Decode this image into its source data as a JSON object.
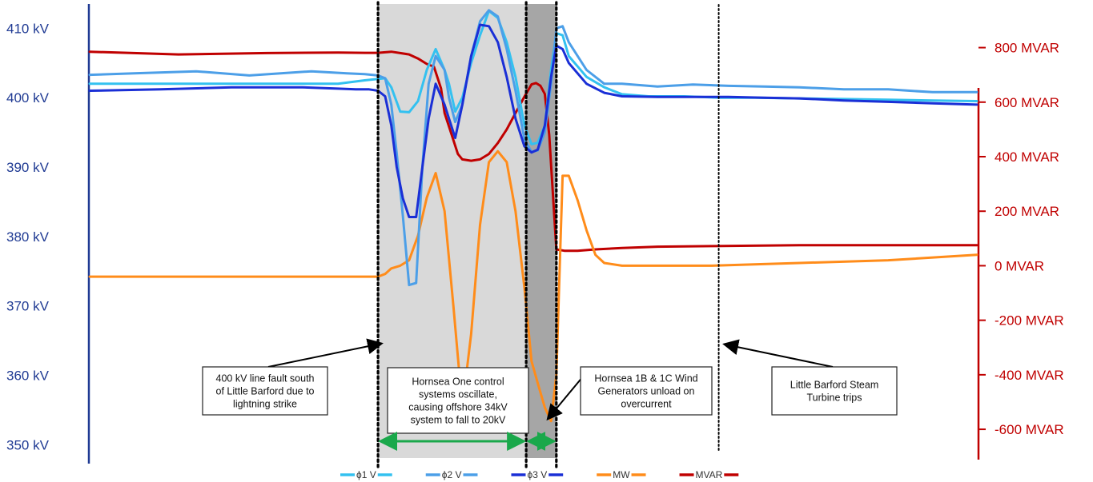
{
  "chart_data": {
    "type": "line",
    "title": "",
    "xlabel": "",
    "ylabel": "",
    "y_left": {
      "ticks": [
        350,
        360,
        370,
        380,
        390,
        400,
        410
      ],
      "tick_labels": [
        "350 kV",
        "360 kV",
        "370 kV",
        "380 kV",
        "390 kV",
        "400 kV",
        "410 kV"
      ],
      "range": [
        347.5,
        413.5
      ],
      "color": "#1f3a93"
    },
    "y_right": {
      "ticks": [
        -600,
        -400,
        -200,
        0,
        200,
        400,
        600,
        800
      ],
      "tick_labels": [
        "-600 MVAR",
        "-400 MVAR",
        "-200 MVAR",
        "0 MVAR",
        "200 MVAR",
        "400 MVAR",
        "600 MVAR",
        "800 MVAR"
      ],
      "range": [
        -720,
        960
      ],
      "color": "#c00000"
    },
    "x_range": [
      0,
      100
    ],
    "shaded_regions": [
      {
        "x0": 32.5,
        "x1": 49.2,
        "color": "#d9d9d9"
      },
      {
        "x0": 49.2,
        "x1": 52.6,
        "color": "#a6a6a6"
      }
    ],
    "event_lines": [
      32.5,
      49.2,
      52.6,
      70.9
    ],
    "series": [
      {
        "name": "ϕ1 V",
        "axis": "left",
        "color": "#33c1f0",
        "x": [
          0,
          10,
          20,
          28,
          31,
          32.5,
          33.3,
          34,
          35,
          36,
          37,
          38,
          39,
          40,
          40.5,
          41.2,
          42,
          43,
          44,
          45,
          46,
          47,
          48,
          49,
          49.8,
          50.5,
          51.3,
          52,
          52.6,
          53.3,
          54,
          56,
          58,
          60,
          63,
          67,
          71,
          75,
          80,
          85,
          90,
          95,
          100
        ],
        "y": [
          402,
          402,
          402,
          402,
          402.5,
          402.7,
          402.8,
          401.5,
          398,
          397.9,
          399.5,
          404,
          407,
          404,
          402,
          398,
          400,
          405,
          409,
          412.5,
          411.5,
          408,
          403,
          396,
          393.3,
          393.5,
          396,
          404,
          409.3,
          409,
          406,
          403,
          401.5,
          400.5,
          400.2,
          400.2,
          400,
          400,
          399.9,
          399.8,
          399.7,
          399.6,
          399.5
        ]
      },
      {
        "name": "ϕ2 V",
        "axis": "left",
        "color": "#4c9fe8",
        "x": [
          0,
          5,
          12,
          18,
          25,
          29,
          31,
          32.5,
          33.3,
          34,
          34.6,
          35.3,
          36,
          36.8,
          37.5,
          38.2,
          39,
          40,
          40.5,
          41.2,
          42,
          43,
          44,
          45,
          46,
          47,
          48,
          49,
          49.8,
          50.5,
          51.3,
          52,
          52.6,
          53.3,
          54,
          56,
          58,
          60,
          64,
          68,
          72,
          76,
          80,
          85,
          90,
          95,
          100
        ],
        "y": [
          403.3,
          403.5,
          403.8,
          403.2,
          403.8,
          403.5,
          403.4,
          403.2,
          402.8,
          399,
          392,
          383,
          373,
          373.3,
          390,
          402,
          406,
          404,
          400,
          396.5,
          399,
          406,
          411,
          412.6,
          411.7,
          407,
          401,
          394,
          392.2,
          392.4,
          395,
          402,
          410,
          410.3,
          408,
          404,
          402,
          402,
          401.6,
          401.9,
          401.7,
          401.6,
          401.5,
          401.2,
          401.2,
          400.8,
          400.8
        ]
      },
      {
        "name": "ϕ3 V",
        "axis": "left",
        "color": "#1a2fd6",
        "x": [
          0,
          8,
          16,
          24,
          28,
          30,
          31.5,
          32.5,
          33.3,
          34,
          34.6,
          35.3,
          36,
          36.8,
          37.5,
          38.2,
          39,
          40,
          40.5,
          41.2,
          42,
          43,
          44,
          45,
          46,
          47,
          48,
          49,
          49.8,
          50.5,
          51.3,
          52,
          52.6,
          53.3,
          54,
          56,
          58,
          60,
          64,
          68,
          72,
          76,
          80,
          85,
          90,
          95,
          100
        ],
        "y": [
          401,
          401.2,
          401.5,
          401.5,
          401.3,
          401.2,
          401.2,
          401,
          400.2,
          396,
          390,
          385.5,
          382.8,
          382.8,
          390,
          397,
          402,
          399,
          397,
          394.2,
          399,
          406,
          410.5,
          410.3,
          408,
          403,
          397,
          393,
          392.1,
          392.5,
          396,
          403,
          407.5,
          407,
          405,
          402,
          400.7,
          400.2,
          400.1,
          400.1,
          400.1,
          400,
          399.9,
          399.6,
          399.4,
          399.2,
          399
        ]
      },
      {
        "name": "MW",
        "axis": "right",
        "color": "#ff8c1a",
        "x": [
          0,
          10,
          20,
          28,
          31,
          32.5,
          33.3,
          34,
          35,
          36,
          37,
          38,
          39,
          40,
          41,
          42,
          43,
          44,
          45,
          46,
          47,
          48,
          49,
          49.8,
          50.5,
          51.3,
          52,
          52.6,
          53.3,
          54,
          55,
          56,
          57,
          58,
          60,
          64,
          70,
          80,
          90,
          100
        ],
        "y": [
          -40,
          -40,
          -40,
          -40,
          -40,
          -40,
          -30,
          -10,
          0,
          20,
          110,
          250,
          340,
          200,
          -150,
          -520,
          -250,
          150,
          380,
          420,
          380,
          200,
          -80,
          -350,
          -430,
          -520,
          -570,
          -400,
          330,
          330,
          240,
          130,
          40,
          10,
          0,
          0,
          0,
          10,
          20,
          40
        ]
      },
      {
        "name": "MVAR",
        "axis": "right",
        "color": "#c00000",
        "x": [
          0,
          10,
          20,
          28,
          31,
          32.5,
          33.3,
          34,
          35,
          36,
          37,
          38,
          38.8,
          39.6,
          40,
          40.8,
          41.5,
          42,
          43,
          44,
          45,
          46,
          47,
          48,
          49,
          49.8,
          50.3,
          50.8,
          51.3,
          51.8,
          52.6,
          53.5,
          55,
          57,
          60,
          64,
          70,
          80,
          90,
          100
        ],
        "y": [
          785,
          775,
          780,
          782,
          781,
          781,
          783,
          785,
          780,
          775,
          760,
          740,
          730,
          650,
          560,
          480,
          410,
          390,
          385,
          390,
          410,
          450,
          500,
          560,
          620,
          665,
          670,
          660,
          630,
          480,
          60,
          55,
          55,
          60,
          65,
          70,
          72,
          75,
          75,
          75
        ]
      }
    ],
    "annotations": [
      {
        "id": "line-fault",
        "lines": [
          "400 kV line fault south",
          "of Little Barford due to",
          "lightning strike"
        ]
      },
      {
        "id": "hornsea-one",
        "lines": [
          "Hornsea One control",
          "systems oscillate,",
          "causing offshore 34kV",
          "system to fall to 20kV"
        ]
      },
      {
        "id": "hornsea-1b-1c",
        "lines": [
          "Hornsea 1B & 1C Wind",
          "Generators unload on",
          "overcurrent"
        ]
      },
      {
        "id": "little-barford-trip",
        "lines": [
          "Little Barford Steam",
          "Turbine trips"
        ]
      }
    ],
    "legend": {
      "placement": "bottom",
      "entries": [
        "ϕ1 V",
        "ϕ2 V",
        "ϕ3 V",
        "MW",
        "MVAR"
      ]
    },
    "grid": false
  }
}
